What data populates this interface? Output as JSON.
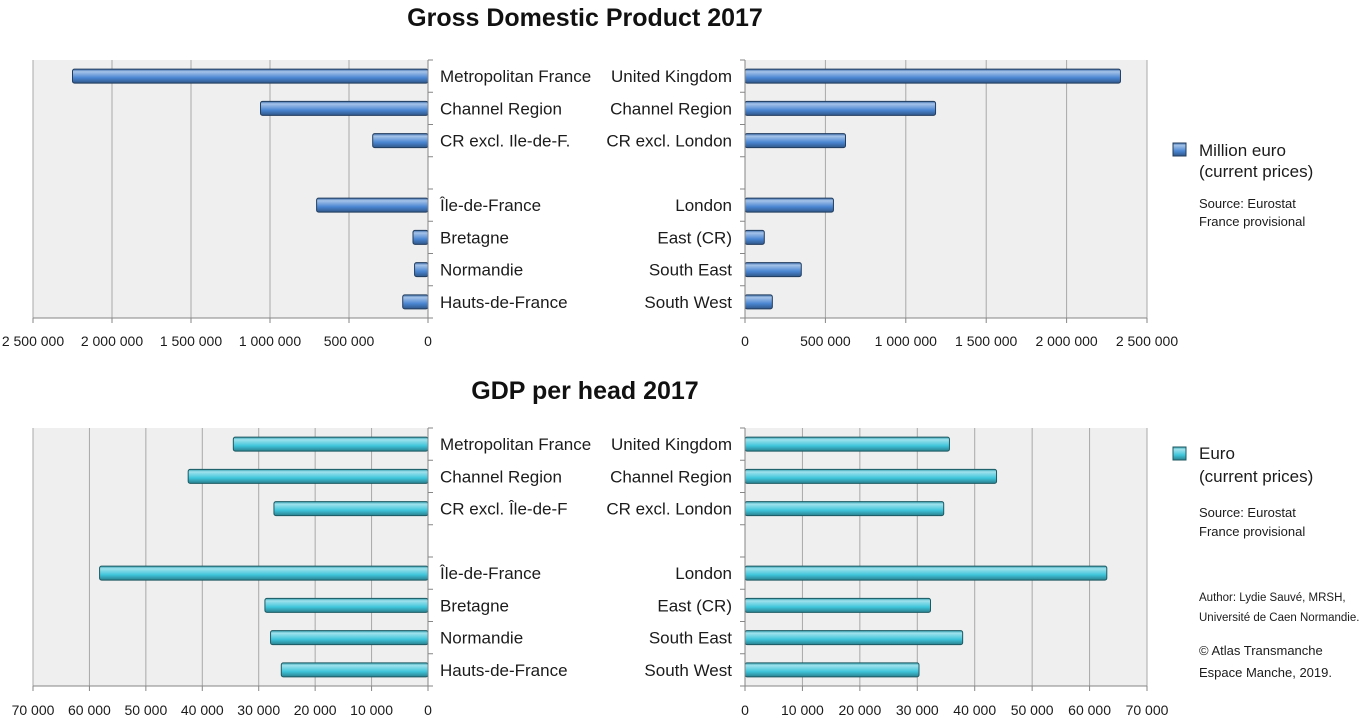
{
  "chart_data": [
    {
      "type": "bar",
      "orientation": "horizontal",
      "title": "Gross Domestic Product 2017",
      "grid": true,
      "color": "#4a86d2",
      "legend": {
        "placement": "right",
        "label": [
          "Million euro",
          "(current prices)"
        ],
        "source": [
          "Source: Eurostat",
          "France provisional"
        ]
      },
      "panels": [
        {
          "x_axis_reversed": true,
          "xlim": [
            0,
            2500000
          ],
          "xticks": [
            0,
            500000,
            1000000,
            1500000,
            2000000,
            2500000
          ],
          "xtick_labels": [
            "0",
            "500 000",
            "1 000 000",
            "1 500 000",
            "2 000 000",
            "2 500 000"
          ],
          "groups": [
            {
              "categories": [
                "Metropolitan France",
                "Channel Region",
                "CR excl. Ile-de-F."
              ],
              "values": [
                2250000,
                1060000,
                350000
              ]
            },
            {
              "categories": [
                "Île-de-France",
                "Bretagne",
                "Normandie",
                "Hauts-de-France"
              ],
              "values": [
                705000,
                95000,
                85000,
                160000
              ]
            }
          ]
        },
        {
          "x_axis_reversed": false,
          "xlim": [
            0,
            2500000
          ],
          "xticks": [
            0,
            500000,
            1000000,
            1500000,
            2000000,
            2500000
          ],
          "xtick_labels": [
            "0",
            "500 000",
            "1 000 000",
            "1 500 000",
            "2 000 000",
            "2 500 000"
          ],
          "groups": [
            {
              "categories": [
                "United Kingdom",
                "Channel Region",
                "CR excl. London"
              ],
              "values": [
                2335000,
                1185000,
                625000
              ]
            },
            {
              "categories": [
                "London",
                "East (CR)",
                "South East",
                "South West"
              ],
              "values": [
                550000,
                120000,
                350000,
                170000
              ]
            }
          ]
        }
      ]
    },
    {
      "type": "bar",
      "orientation": "horizontal",
      "title": "GDP per head 2017",
      "grid": true,
      "color": "#3fc5da",
      "legend": {
        "placement": "right",
        "label": [
          "Euro",
          "(current prices)"
        ],
        "source": [
          "Source: Eurostat",
          "France provisional"
        ]
      },
      "panels": [
        {
          "x_axis_reversed": true,
          "xlim": [
            0,
            70000
          ],
          "xticks": [
            0,
            10000,
            20000,
            30000,
            40000,
            50000,
            60000,
            70000
          ],
          "xtick_labels": [
            "0",
            "10 000",
            "20 000",
            "30 000",
            "40 000",
            "50 000",
            "60 000",
            "70 000"
          ],
          "groups": [
            {
              "categories": [
                "Metropolitan France",
                "Channel Region",
                "CR excl. Île-de-F"
              ],
              "values": [
                34500,
                42500,
                27300
              ]
            },
            {
              "categories": [
                "Île-de-France",
                "Bretagne",
                "Normandie",
                "Hauts-de-France"
              ],
              "values": [
                58200,
                28900,
                27900,
                26000
              ]
            }
          ]
        },
        {
          "x_axis_reversed": false,
          "xlim": [
            0,
            70000
          ],
          "xticks": [
            0,
            10000,
            20000,
            30000,
            40000,
            50000,
            60000,
            70000
          ],
          "xtick_labels": [
            "0",
            "10 000",
            "20 000",
            "30 000",
            "40 000",
            "50 000",
            "60 000",
            "70 000"
          ],
          "groups": [
            {
              "categories": [
                "United Kingdom",
                "Channel Region",
                "CR excl. London"
              ],
              "values": [
                35600,
                43800,
                34600
              ]
            },
            {
              "categories": [
                "London",
                "East (CR)",
                "South East",
                "South West"
              ],
              "values": [
                63000,
                32300,
                37900,
                30300
              ]
            }
          ]
        }
      ]
    }
  ],
  "credits": {
    "author": [
      "Author: Lydie Sauvé, MRSH,",
      "Université de Caen Normandie."
    ],
    "copyright": [
      "© Atlas Transmanche",
      "Espace Manche, 2019."
    ]
  }
}
